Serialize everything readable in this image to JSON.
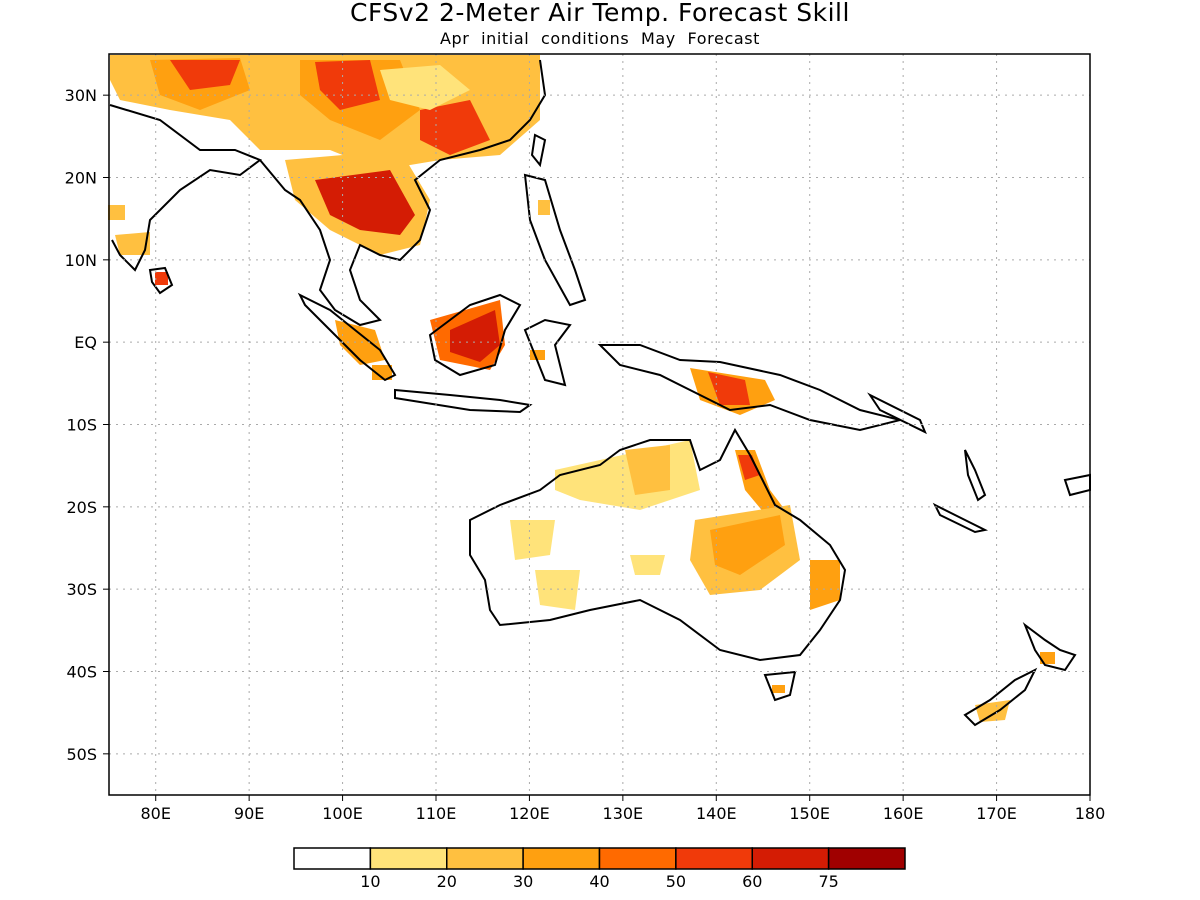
{
  "title": "CFSv2 2-Meter Air Temp. Forecast Skill",
  "subtitle": "Apr initial conditions  May Forecast",
  "map": {
    "lon_range": [
      75,
      180
    ],
    "lat_range": [
      -55,
      35
    ],
    "grid": "dotted",
    "lon_ticks": [
      {
        "value": 80,
        "label": "80E"
      },
      {
        "value": 90,
        "label": "90E"
      },
      {
        "value": 100,
        "label": "100E"
      },
      {
        "value": 110,
        "label": "110E"
      },
      {
        "value": 120,
        "label": "120E"
      },
      {
        "value": 130,
        "label": "130E"
      },
      {
        "value": 140,
        "label": "140E"
      },
      {
        "value": 150,
        "label": "150E"
      },
      {
        "value": 160,
        "label": "160E"
      },
      {
        "value": 170,
        "label": "170E"
      },
      {
        "value": 180,
        "label": "180"
      }
    ],
    "lat_ticks": [
      {
        "value": 30,
        "label": "30N"
      },
      {
        "value": 20,
        "label": "20N"
      },
      {
        "value": 10,
        "label": "10N"
      },
      {
        "value": 0,
        "label": "EQ"
      },
      {
        "value": -10,
        "label": "10S"
      },
      {
        "value": -20,
        "label": "20S"
      },
      {
        "value": -30,
        "label": "30S"
      },
      {
        "value": -40,
        "label": "40S"
      },
      {
        "value": -50,
        "label": "50S"
      }
    ]
  },
  "colorbar": {
    "colors": [
      "#ffffff",
      "#ffe37a",
      "#ffc040",
      "#ffa010",
      "#ff6a00",
      "#f03a0a",
      "#d41c04",
      "#a00000"
    ],
    "labels": [
      "10",
      "20",
      "30",
      "40",
      "50",
      "60",
      "75"
    ]
  }
}
